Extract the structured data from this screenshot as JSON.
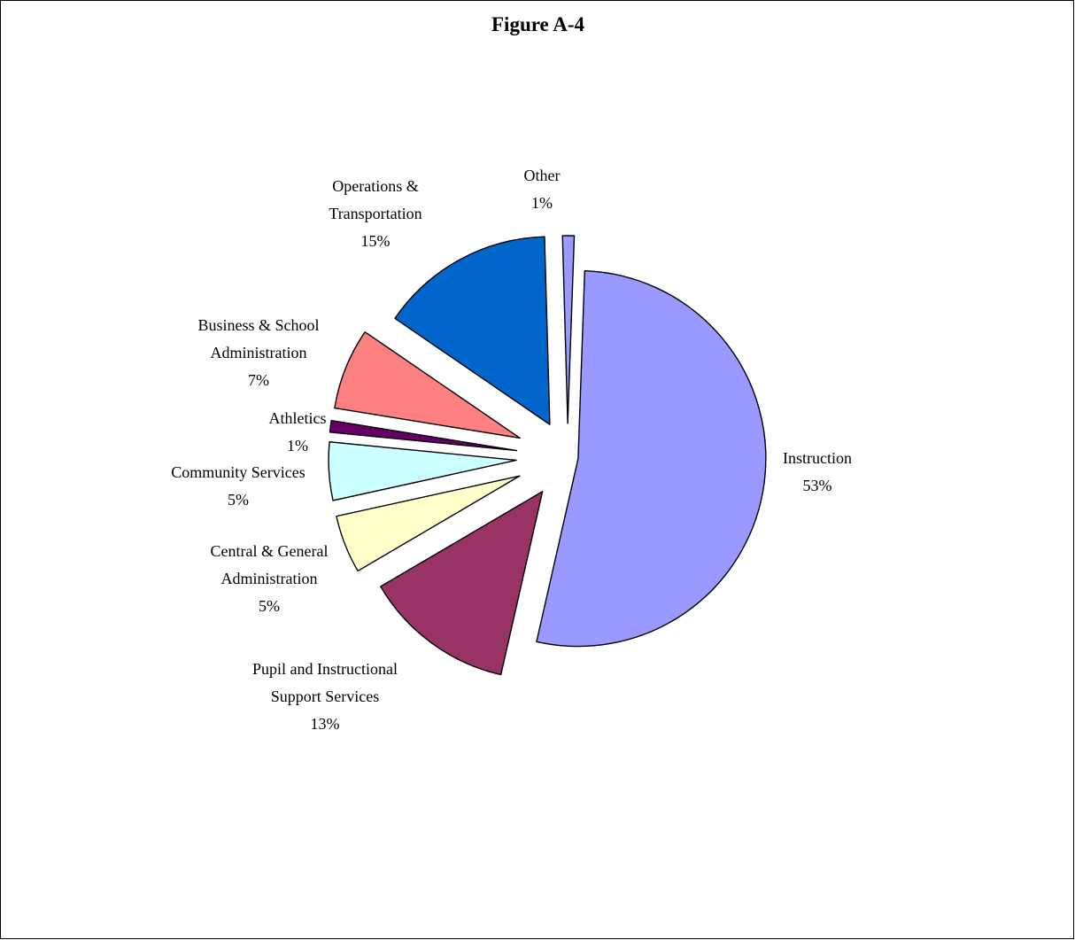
{
  "chart_data": {
    "type": "pie",
    "title": "Figure A-4",
    "exploded": true,
    "slices": [
      {
        "label_lines": [
          "Instruction"
        ],
        "value_label": "53%",
        "value": 53,
        "color": "#9999FF"
      },
      {
        "label_lines": [
          "Pupil and Instructional",
          "Support Services"
        ],
        "value_label": "13%",
        "value": 13,
        "color": "#993366"
      },
      {
        "label_lines": [
          "Central & General",
          "Administration"
        ],
        "value_label": "5%",
        "value": 5,
        "color": "#FFFFCC"
      },
      {
        "label_lines": [
          "Community Services"
        ],
        "value_label": "5%",
        "value": 5,
        "color": "#CCFFFF"
      },
      {
        "label_lines": [
          "Athletics"
        ],
        "value_label": "1%",
        "value": 1,
        "color": "#660066"
      },
      {
        "label_lines": [
          "Business & School",
          "Administration"
        ],
        "value_label": "7%",
        "value": 7,
        "color": "#FF8080"
      },
      {
        "label_lines": [
          "Operations &",
          "Transportation"
        ],
        "value_label": "15%",
        "value": 15,
        "color": "#0066CC"
      },
      {
        "label_lines": [
          "Other"
        ],
        "value_label": "1%",
        "value": 1,
        "color": "#9999FF"
      }
    ]
  }
}
